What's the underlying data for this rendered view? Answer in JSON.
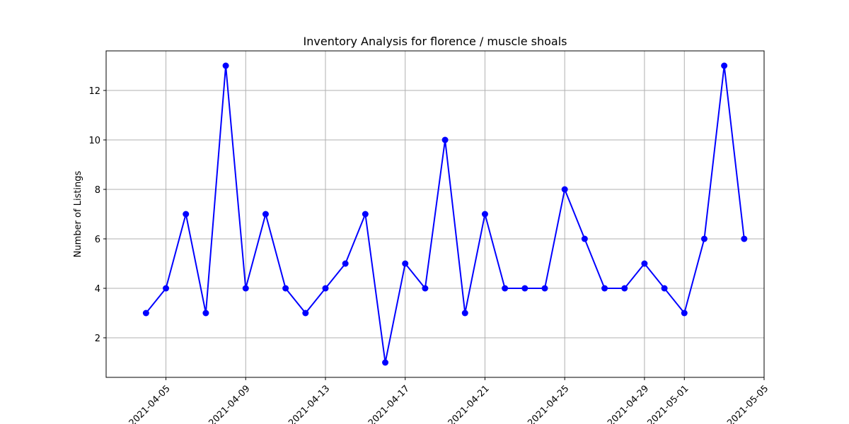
{
  "chart_data": {
    "type": "line",
    "title": "Inventory Analysis for florence / muscle shoals",
    "xlabel": "",
    "ylabel": "Number of Listings",
    "x": [
      "2021-04-04",
      "2021-04-05",
      "2021-04-06",
      "2021-04-07",
      "2021-04-08",
      "2021-04-09",
      "2021-04-10",
      "2021-04-11",
      "2021-04-12",
      "2021-04-13",
      "2021-04-14",
      "2021-04-15",
      "2021-04-16",
      "2021-04-17",
      "2021-04-18",
      "2021-04-19",
      "2021-04-20",
      "2021-04-21",
      "2021-04-22",
      "2021-04-23",
      "2021-04-24",
      "2021-04-25",
      "2021-04-26",
      "2021-04-27",
      "2021-04-28",
      "2021-04-29",
      "2021-04-30",
      "2021-05-01",
      "2021-05-02",
      "2021-05-03",
      "2021-05-04"
    ],
    "series": [
      {
        "values": [
          3,
          4,
          7,
          3,
          13,
          4,
          7,
          4,
          3,
          4,
          5,
          7,
          1,
          5,
          4,
          10,
          3,
          7,
          4,
          4,
          4,
          8,
          6,
          4,
          4,
          5,
          4,
          3,
          6,
          13,
          6
        ],
        "color": "#0000ff",
        "marker": "circle"
      }
    ],
    "xlim": [
      "2021-04-02",
      "2021-05-05"
    ],
    "ylim": [
      0.4,
      13.6
    ],
    "xticks": [
      "2021-04-05",
      "2021-04-09",
      "2021-04-13",
      "2021-04-17",
      "2021-04-21",
      "2021-04-25",
      "2021-04-29",
      "2021-05-01",
      "2021-05-05"
    ],
    "yticks": [
      2,
      4,
      6,
      8,
      10,
      12
    ],
    "grid": true
  }
}
